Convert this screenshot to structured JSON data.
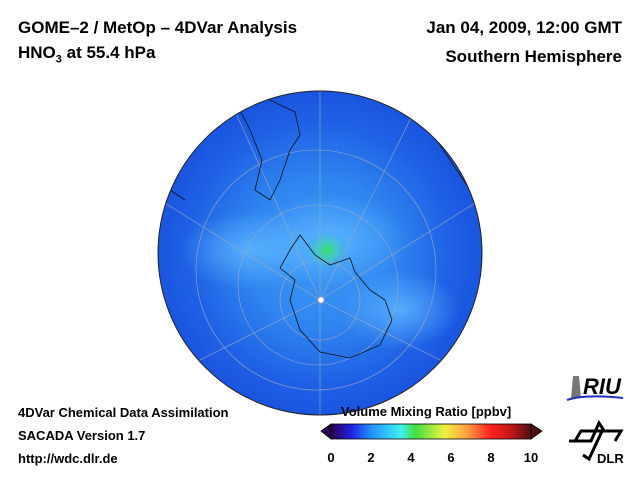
{
  "header": {
    "title_line1": "GOME–2 / MetOp – 4DVar Analysis",
    "title_species": "HNO",
    "title_species_sub": "3",
    "title_level": " at 55.4 hPa",
    "date": "Jan 04, 2009, 12:00 GMT",
    "region": "Southern Hemisphere"
  },
  "footer": {
    "line1": "4DVar Chemical Data Assimilation",
    "line2": "SACADA Version 1.7",
    "line3": "http://wdc.dlr.de"
  },
  "colorbar": {
    "title": "Volume Mixing Ratio [ppbv]",
    "ticks": [
      "0",
      "2",
      "4",
      "6",
      "8",
      "10"
    ],
    "range": [
      0,
      10
    ],
    "colors": [
      "#2a0050",
      "#2020e0",
      "#2090ff",
      "#40f0f0",
      "#40e040",
      "#f0f040",
      "#ffa040",
      "#ff2020",
      "#c01818",
      "#501010"
    ]
  },
  "logos": {
    "riu": "RIU",
    "dlr": "DLR"
  }
}
